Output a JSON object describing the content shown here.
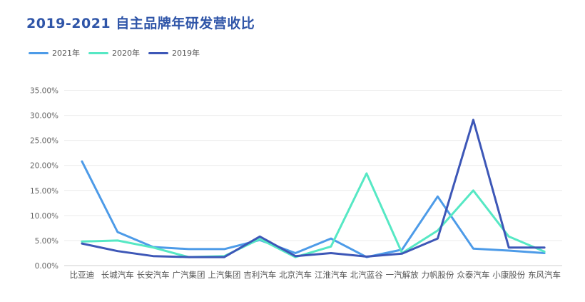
{
  "title": "2019-2021 自主品牌年研发营收比",
  "chart_data": {
    "type": "line",
    "title": "2019-2021 自主品牌年研发营收比",
    "xlabel": "",
    "ylabel": "",
    "categories": [
      "比亚迪",
      "长城汽车",
      "长安汽车",
      "广汽集团",
      "上汽集团",
      "吉利汽车",
      "北京汽车",
      "江淮汽车",
      "北汽蓝谷",
      "一汽解放",
      "力帆股份",
      "众泰汽车",
      "小康股份",
      "东风汽车"
    ],
    "y_ticks": [
      "0.00%",
      "5.00%",
      "10.00%",
      "15.00%",
      "20.00%",
      "25.00%",
      "30.00%",
      "35.00%"
    ],
    "ylim": [
      0,
      35
    ],
    "grid": true,
    "legend_position": "top-left",
    "series": [
      {
        "name": "2021年",
        "color": "#4d9be8",
        "values": [
          20.8,
          6.7,
          3.7,
          3.3,
          3.3,
          5.1,
          2.5,
          5.4,
          1.7,
          3.2,
          13.8,
          3.4,
          3.0,
          2.5
        ]
      },
      {
        "name": "2020年",
        "color": "#56e8c4",
        "values": [
          4.8,
          5.0,
          3.6,
          1.7,
          1.9,
          5.3,
          1.7,
          3.8,
          18.4,
          2.5,
          7.0,
          15.0,
          5.8,
          2.8
        ]
      },
      {
        "name": "2019年",
        "color": "#3d57b7",
        "values": [
          4.4,
          2.9,
          1.9,
          1.7,
          1.7,
          5.8,
          1.9,
          2.5,
          1.8,
          2.4,
          5.4,
          29.1,
          3.6,
          3.6
        ]
      }
    ]
  }
}
